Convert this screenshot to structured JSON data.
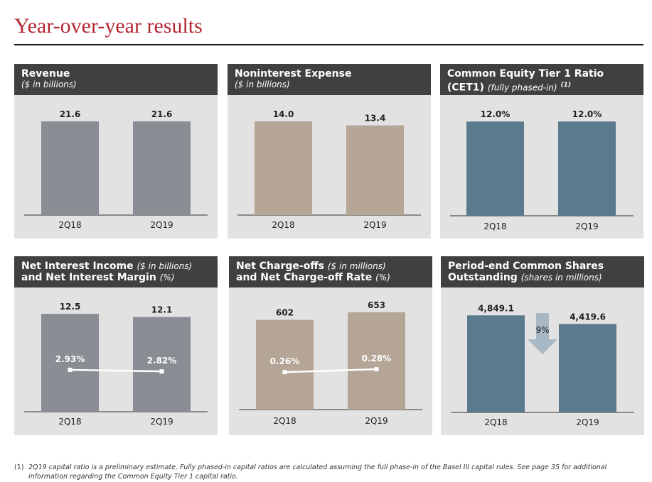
{
  "page": {
    "title": "Year-over-year results"
  },
  "panels": {
    "revenue": {
      "title": "Revenue",
      "subtitle": "($ in billions)"
    },
    "nonint": {
      "title": "Noninterest Expense",
      "subtitle": "($ in billions)"
    },
    "cet1": {
      "title_line1": "Common Equity Tier 1 Ratio",
      "title_line2": "(CET1)",
      "subtitle": "(fully phased-in)",
      "footnote_ref": "(1)"
    },
    "nii": {
      "title_line1": "Net Interest Income",
      "sub_line1": "($ in billions)",
      "title_line2": "and Net Interest Margin",
      "sub_line2": "(%)"
    },
    "nco": {
      "title_line1": "Net Charge-offs",
      "sub_line1": "($ in millions)",
      "title_line2": "and Net Charge-off Rate",
      "sub_line2": "(%)"
    },
    "shares": {
      "title_line1": "Period-end Common Shares",
      "title_line2": "Outstanding",
      "subtitle": "(shares in millions)"
    }
  },
  "chart_data": [
    {
      "id": "revenue",
      "type": "bar",
      "categories": [
        "2Q18",
        "2Q19"
      ],
      "values": [
        21.6,
        21.6
      ],
      "labels": [
        "21.6",
        "21.6"
      ],
      "ylim": [
        0,
        27
      ],
      "bar_color": "#8a8d94"
    },
    {
      "id": "nonint",
      "type": "bar",
      "categories": [
        "2Q18",
        "2Q19"
      ],
      "values": [
        14.0,
        13.4
      ],
      "labels": [
        "14.0",
        "13.4"
      ],
      "ylim": [
        0,
        17.5
      ],
      "bar_color": "#b4a596"
    },
    {
      "id": "cet1",
      "type": "bar",
      "categories": [
        "2Q18",
        "2Q19"
      ],
      "values": [
        12.0,
        12.0
      ],
      "labels": [
        "12.0%",
        "12.0%"
      ],
      "ylim": [
        0,
        15
      ],
      "bar_color": "#5b7a8e"
    },
    {
      "id": "nii",
      "type": "bar",
      "categories": [
        "2Q18",
        "2Q19"
      ],
      "values": [
        12.5,
        12.1
      ],
      "labels": [
        "12.5",
        "12.1"
      ],
      "ylim": [
        0,
        15.5
      ],
      "bar_color": "#8a8d94",
      "line": {
        "values": [
          2.93,
          2.82
        ],
        "labels": [
          "2.93%",
          "2.82%"
        ],
        "ylim": [
          0,
          6.7
        ]
      }
    },
    {
      "id": "nco",
      "type": "bar",
      "categories": [
        "2Q18",
        "2Q19"
      ],
      "values": [
        602,
        653
      ],
      "labels": [
        "602",
        "653"
      ],
      "ylim": [
        0,
        800
      ],
      "bar_color": "#b4a596",
      "line": {
        "values": [
          0.26,
          0.28
        ],
        "labels": [
          "0.26%",
          "0.28%"
        ],
        "ylim": [
          0,
          0.65
        ]
      }
    },
    {
      "id": "shares",
      "type": "bar",
      "categories": [
        "2Q18",
        "2Q19"
      ],
      "values": [
        4849.1,
        4419.6
      ],
      "labels": [
        "4,849.1",
        "4,419.6"
      ],
      "ylim": [
        0,
        6100
      ],
      "bar_color": "#5b7a8e",
      "annotation": {
        "text": "9%",
        "arrow": "down"
      }
    }
  ],
  "footnote": {
    "number": "(1)",
    "text": "2Q19 capital ratio is a preliminary estimate. Fully phased-in capital ratios are calculated assuming the full phase-in of the Basel III capital rules. See page 35 for additional information regarding the Common Equity Tier 1 capital ratio."
  }
}
